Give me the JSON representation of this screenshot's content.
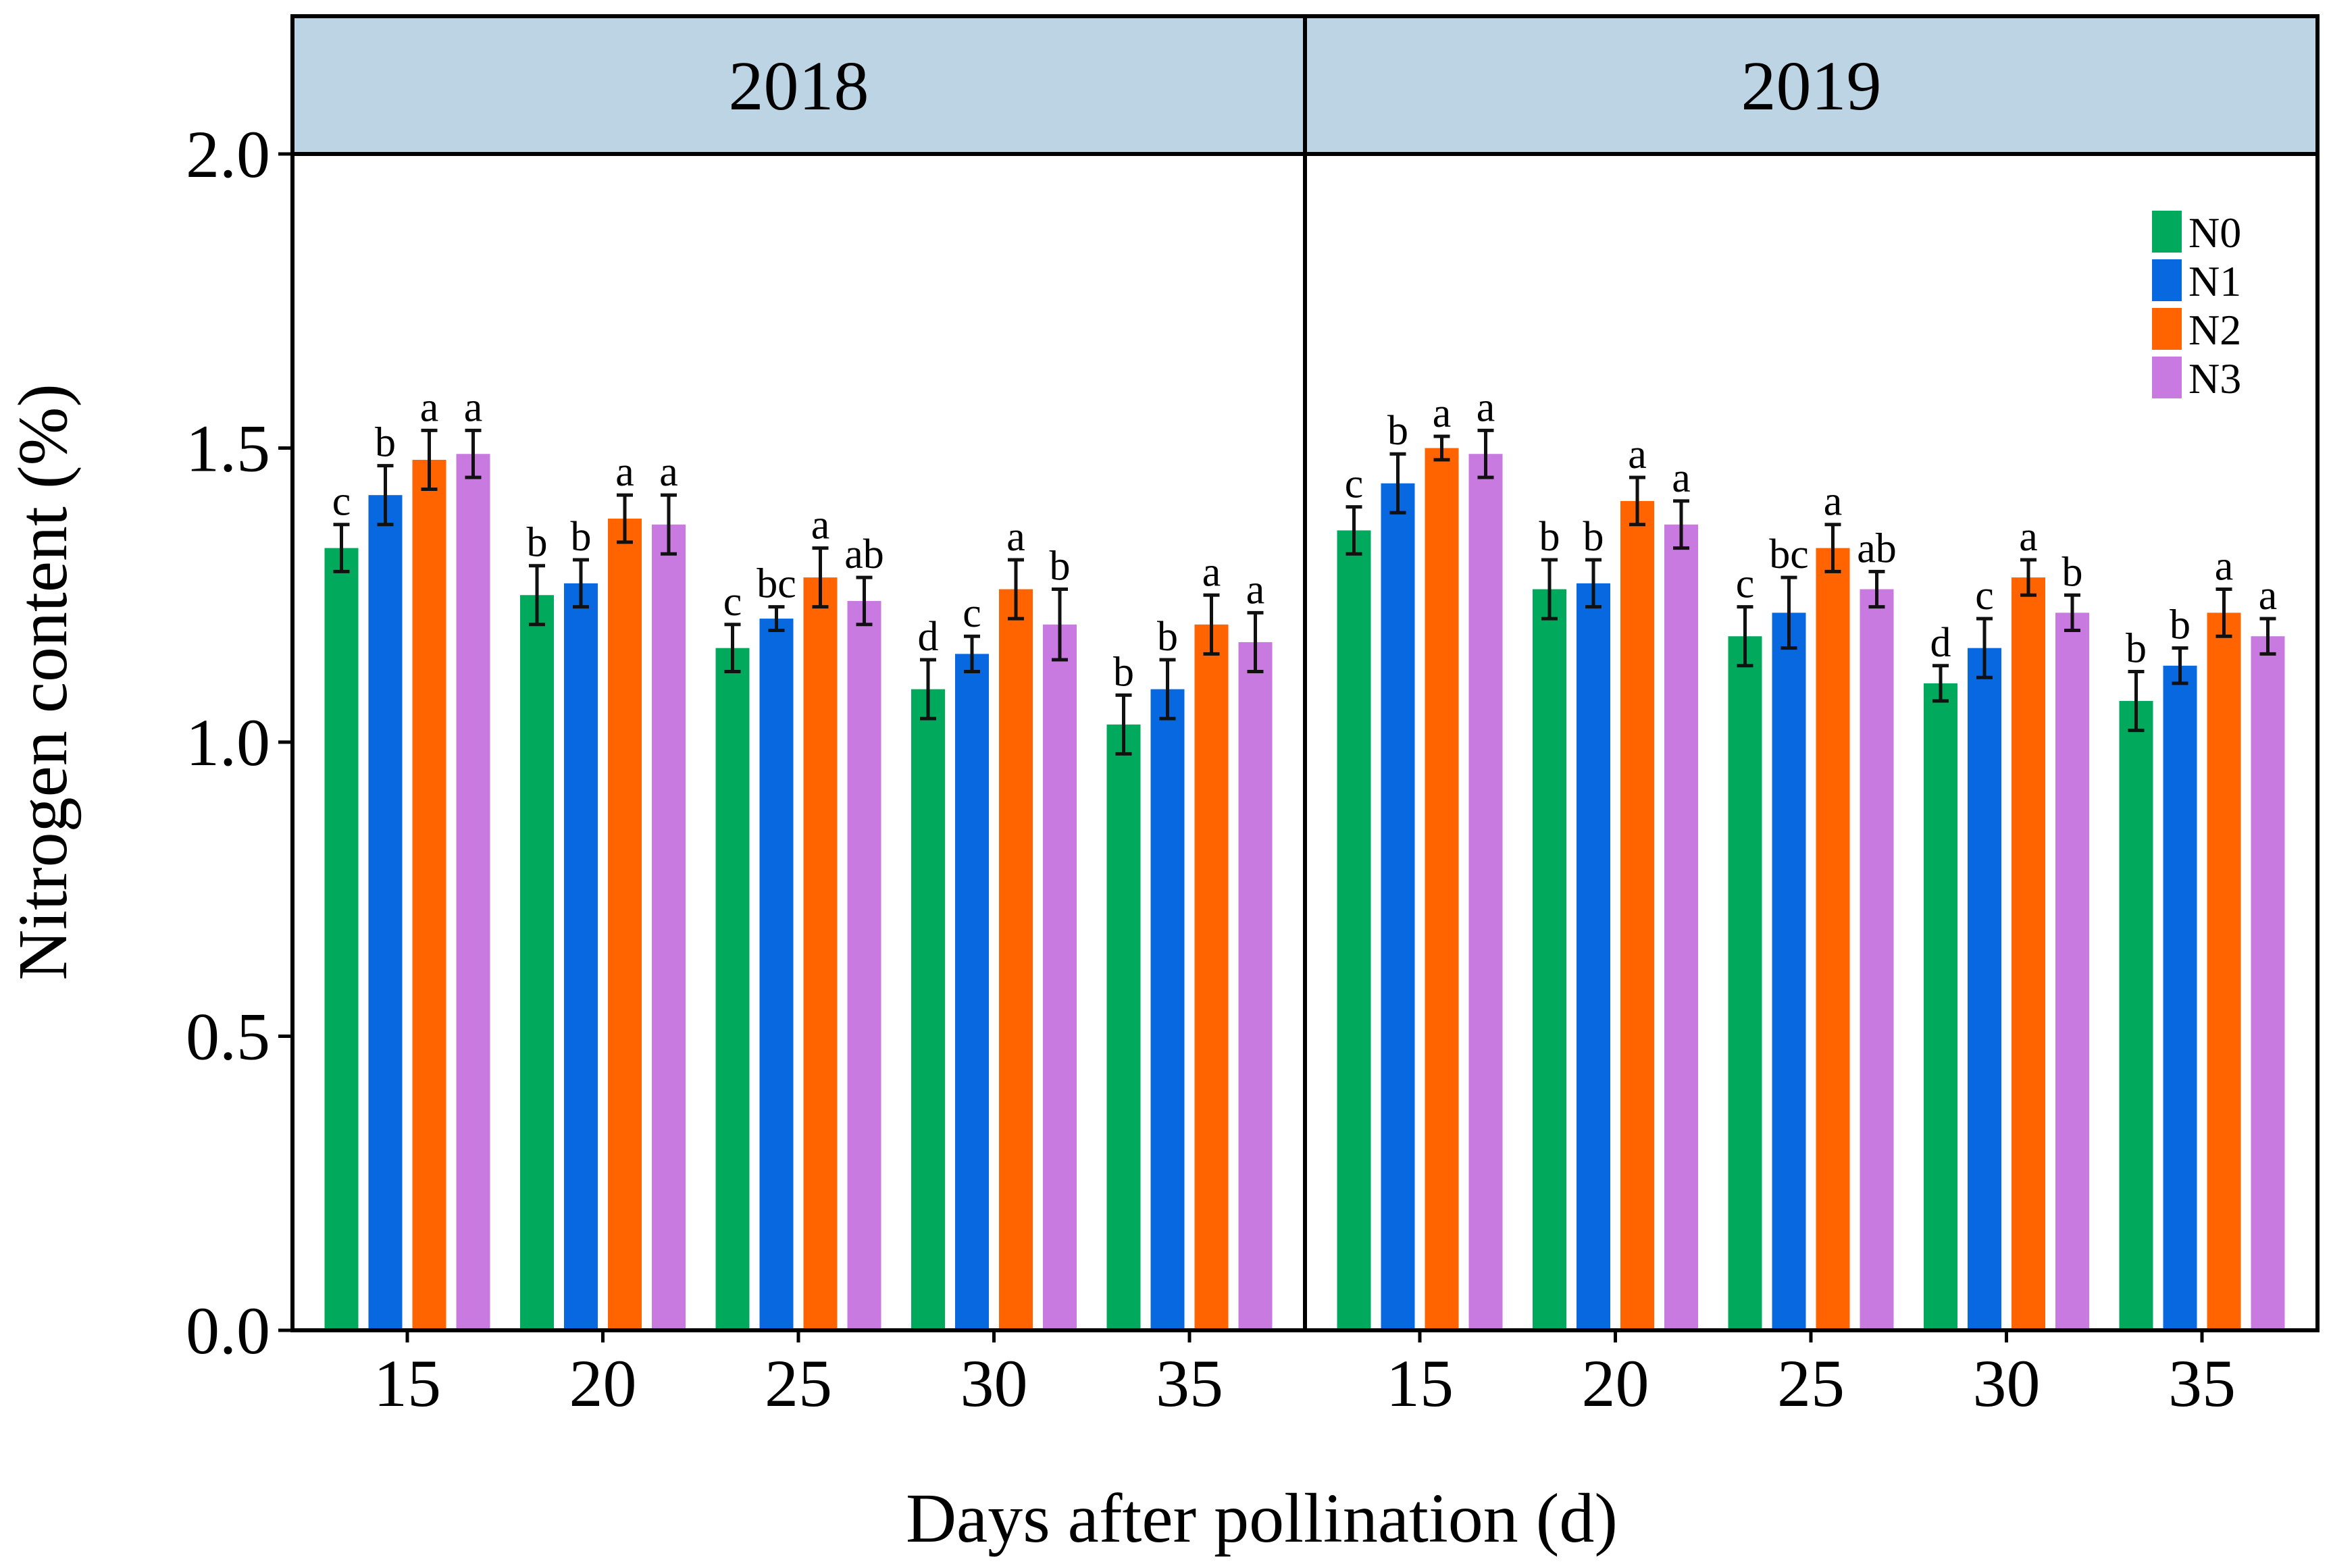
{
  "chart_data": {
    "type": "bar",
    "ylabel": "Nitrogen content (%)",
    "xlabel": "Days after pollination (d)",
    "ylim": [
      0,
      2.0
    ],
    "y_ticks": [
      "0.0",
      "0.5",
      "1.0",
      "1.5",
      "2.0"
    ],
    "y_tick_values": [
      0,
      0.5,
      1.0,
      1.5,
      2.0
    ],
    "categories": [
      "15",
      "20",
      "25",
      "30",
      "35"
    ],
    "legend": [
      "N0",
      "N1",
      "N2",
      "N3"
    ],
    "colors": {
      "N0": "#00a95c",
      "N1": "#0868e0",
      "N2": "#ff6400",
      "N3": "#c87ae0",
      "strip": "#bcd4e4"
    },
    "panels": [
      {
        "title": "2018",
        "series": [
          {
            "name": "N0",
            "values": [
              1.33,
              1.25,
              1.16,
              1.09,
              1.03
            ],
            "errors": [
              0.04,
              0.05,
              0.04,
              0.05,
              0.05
            ],
            "letters": [
              "c",
              "b",
              "c",
              "d",
              "b"
            ]
          },
          {
            "name": "N1",
            "values": [
              1.42,
              1.27,
              1.21,
              1.15,
              1.09
            ],
            "errors": [
              0.05,
              0.04,
              0.02,
              0.03,
              0.05
            ],
            "letters": [
              "b",
              "b",
              "bc",
              "c",
              "b"
            ]
          },
          {
            "name": "N2",
            "values": [
              1.48,
              1.38,
              1.28,
              1.26,
              1.2
            ],
            "errors": [
              0.05,
              0.04,
              0.05,
              0.05,
              0.05
            ],
            "letters": [
              "a",
              "a",
              "a",
              "a",
              "a"
            ]
          },
          {
            "name": "N3",
            "values": [
              1.49,
              1.37,
              1.24,
              1.2,
              1.17
            ],
            "errors": [
              0.04,
              0.05,
              0.04,
              0.06,
              0.05
            ],
            "letters": [
              "a",
              "a",
              "ab",
              "b",
              "a"
            ]
          }
        ]
      },
      {
        "title": "2019",
        "series": [
          {
            "name": "N0",
            "values": [
              1.36,
              1.26,
              1.18,
              1.1,
              1.07
            ],
            "errors": [
              0.04,
              0.05,
              0.05,
              0.03,
              0.05
            ],
            "letters": [
              "c",
              "b",
              "c",
              "d",
              "b"
            ]
          },
          {
            "name": "N1",
            "values": [
              1.44,
              1.27,
              1.22,
              1.16,
              1.13
            ],
            "errors": [
              0.05,
              0.04,
              0.06,
              0.05,
              0.03
            ],
            "letters": [
              "b",
              "b",
              "bc",
              "c",
              "b"
            ]
          },
          {
            "name": "N2",
            "values": [
              1.5,
              1.41,
              1.33,
              1.28,
              1.22
            ],
            "errors": [
              0.02,
              0.04,
              0.04,
              0.03,
              0.04
            ],
            "letters": [
              "a",
              "a",
              "a",
              "a",
              "a"
            ]
          },
          {
            "name": "N3",
            "values": [
              1.49,
              1.37,
              1.26,
              1.22,
              1.18
            ],
            "errors": [
              0.04,
              0.04,
              0.03,
              0.03,
              0.03
            ],
            "letters": [
              "a",
              "a",
              "ab",
              "b",
              "a"
            ]
          }
        ]
      }
    ]
  }
}
